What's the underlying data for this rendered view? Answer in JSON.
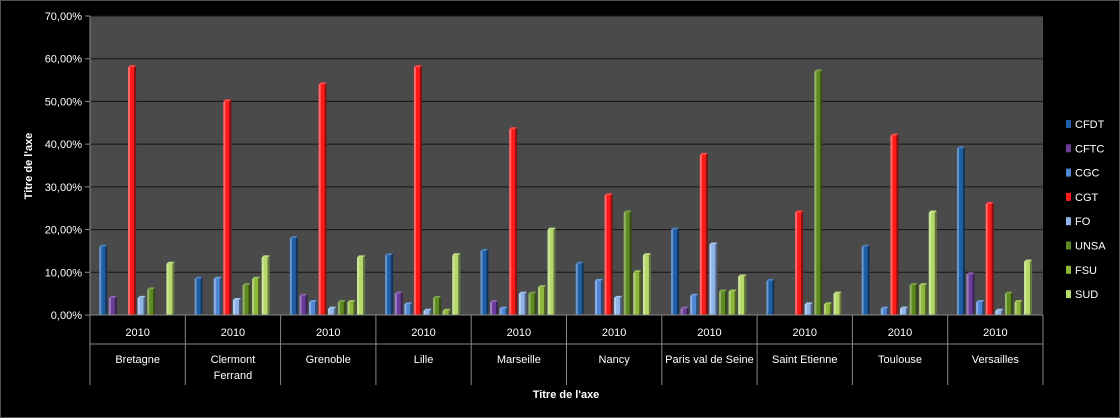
{
  "chart_data": {
    "type": "bar",
    "categories": [
      {
        "year": "2010",
        "lines": [
          "Bretagne"
        ]
      },
      {
        "year": "2010",
        "lines": [
          "Clermont",
          "Ferrand"
        ]
      },
      {
        "year": "2010",
        "lines": [
          "Grenoble"
        ]
      },
      {
        "year": "2010",
        "lines": [
          "Lille"
        ]
      },
      {
        "year": "2010",
        "lines": [
          "Marseille"
        ]
      },
      {
        "year": "2010",
        "lines": [
          "Nancy"
        ]
      },
      {
        "year": "2010",
        "lines": [
          "Paris val de Seine"
        ]
      },
      {
        "year": "2010",
        "lines": [
          "Saint Etienne"
        ]
      },
      {
        "year": "2010",
        "lines": [
          "Toulouse"
        ]
      },
      {
        "year": "2010",
        "lines": [
          "Versailles"
        ]
      }
    ],
    "series": [
      {
        "name": "CFDT",
        "color": "#1F5FA8",
        "values": [
          16,
          8.5,
          18,
          14,
          15,
          12,
          20,
          8,
          16,
          39
        ]
      },
      {
        "name": "CFTC",
        "color": "#6A3D9A",
        "values": [
          4,
          0,
          4.5,
          5,
          3,
          0,
          1.5,
          0,
          0,
          9.5
        ]
      },
      {
        "name": "CGC",
        "color": "#4F86D6",
        "values": [
          0,
          8.5,
          3,
          2.5,
          1.5,
          8,
          4.5,
          0,
          1.5,
          3
        ]
      },
      {
        "name": "CGT",
        "color": "#FF1A1A",
        "values": [
          58,
          50,
          54,
          58,
          43.5,
          28,
          37.5,
          24,
          42,
          26
        ]
      },
      {
        "name": "FO",
        "color": "#8EB4E8",
        "values": [
          4,
          3.5,
          1.5,
          1,
          5,
          4,
          16.5,
          2.5,
          1.5,
          1
        ]
      },
      {
        "name": "UNSA",
        "color": "#5E8A1F",
        "values": [
          6,
          7,
          3,
          4,
          5,
          24,
          5.5,
          57,
          7,
          5
        ]
      },
      {
        "name": "FSU",
        "color": "#8DB83A",
        "values": [
          0,
          8.5,
          3,
          1,
          6.5,
          10,
          5.5,
          2.5,
          7,
          3
        ]
      },
      {
        "name": "SUD",
        "color": "#B5D96B",
        "values": [
          12,
          13.5,
          13.5,
          14,
          20,
          14,
          9,
          5,
          24,
          12.5
        ]
      }
    ],
    "ylim": [
      0,
      70
    ],
    "yticks": [
      "0,00%",
      "10,00%",
      "20,00%",
      "30,00%",
      "40,00%",
      "50,00%",
      "60,00%",
      "70,00%"
    ],
    "xlabel": "Titre de l'axe",
    "ylabel": "Titre de l'axe",
    "legend_position": "right",
    "grid": true,
    "plot_background": "#4A4A4A",
    "grid_color": "#141414"
  }
}
